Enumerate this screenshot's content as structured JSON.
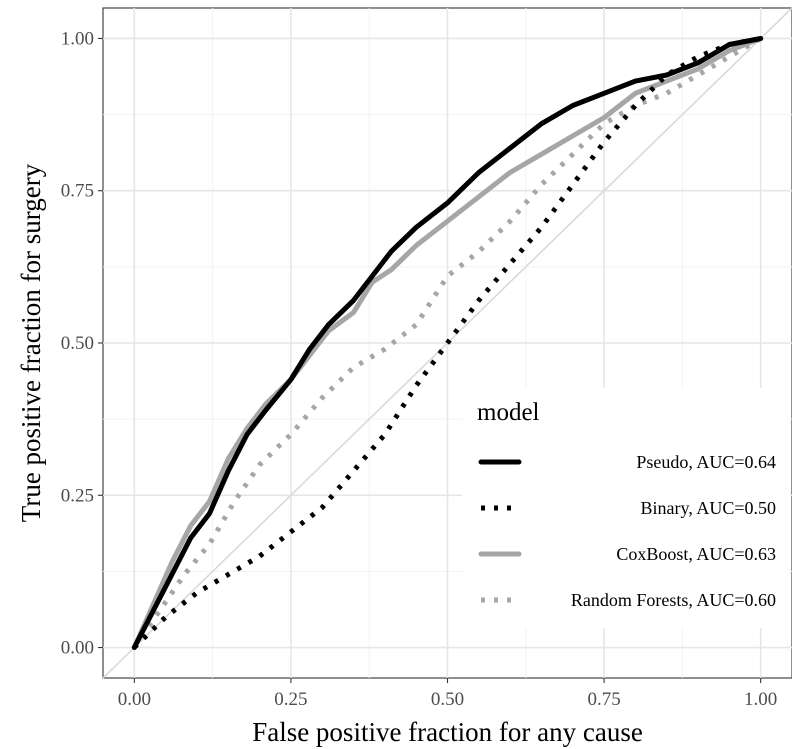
{
  "chart_data": {
    "type": "line",
    "title": "",
    "xlabel": "False positive fraction for any cause",
    "ylabel": "True positive fraction for surgery",
    "xlim": [
      -0.05,
      1.05
    ],
    "ylim": [
      -0.05,
      1.05
    ],
    "x_ticks": [
      "0.00",
      "0.25",
      "0.50",
      "0.75",
      "1.00"
    ],
    "y_ticks": [
      "0.00",
      "0.25",
      "0.50",
      "0.75",
      "1.00"
    ],
    "grid": true,
    "reference_line": {
      "from": [
        0,
        0
      ],
      "to": [
        1,
        1
      ],
      "color": "#d9d9d9"
    },
    "legend": {
      "title": "model",
      "placement": "bottom-right-inside",
      "entries": [
        "Pseudo, AUC=0.64",
        "Binary, AUC=0.50",
        "CoxBoost, AUC=0.63",
        "Random Forests, AUC=0.60"
      ]
    },
    "series": [
      {
        "name": "Pseudo, AUC=0.64",
        "color": "#000000",
        "style": "solid",
        "x": [
          0,
          0.03,
          0.06,
          0.09,
          0.12,
          0.15,
          0.18,
          0.21,
          0.25,
          0.28,
          0.31,
          0.35,
          0.38,
          0.41,
          0.45,
          0.5,
          0.55,
          0.6,
          0.65,
          0.7,
          0.75,
          0.8,
          0.85,
          0.9,
          0.95,
          1.0
        ],
        "y": [
          0,
          0.06,
          0.12,
          0.18,
          0.22,
          0.29,
          0.35,
          0.39,
          0.44,
          0.49,
          0.53,
          0.57,
          0.61,
          0.65,
          0.69,
          0.73,
          0.78,
          0.82,
          0.86,
          0.89,
          0.91,
          0.93,
          0.94,
          0.96,
          0.99,
          1.0
        ]
      },
      {
        "name": "Binary, AUC=0.50",
        "color": "#000000",
        "style": "dotted",
        "x": [
          0,
          0.05,
          0.1,
          0.15,
          0.2,
          0.25,
          0.3,
          0.35,
          0.4,
          0.45,
          0.5,
          0.55,
          0.6,
          0.65,
          0.7,
          0.75,
          0.8,
          0.85,
          0.9,
          0.95,
          1.0
        ],
        "y": [
          0,
          0.05,
          0.09,
          0.12,
          0.15,
          0.19,
          0.23,
          0.29,
          0.35,
          0.43,
          0.5,
          0.57,
          0.63,
          0.69,
          0.76,
          0.83,
          0.89,
          0.94,
          0.97,
          0.99,
          1.0
        ]
      },
      {
        "name": "CoxBoost, AUC=0.63",
        "color": "#a6a6a6",
        "style": "solid",
        "x": [
          0,
          0.03,
          0.06,
          0.09,
          0.12,
          0.15,
          0.18,
          0.21,
          0.25,
          0.28,
          0.31,
          0.35,
          0.38,
          0.41,
          0.45,
          0.5,
          0.55,
          0.6,
          0.65,
          0.7,
          0.75,
          0.8,
          0.85,
          0.9,
          0.95,
          1.0
        ],
        "y": [
          0,
          0.07,
          0.14,
          0.2,
          0.24,
          0.31,
          0.36,
          0.4,
          0.44,
          0.48,
          0.52,
          0.55,
          0.6,
          0.62,
          0.66,
          0.7,
          0.74,
          0.78,
          0.81,
          0.84,
          0.87,
          0.91,
          0.93,
          0.95,
          0.98,
          1.0
        ]
      },
      {
        "name": "Random Forests, AUC=0.60",
        "color": "#a6a6a6",
        "style": "dotted",
        "x": [
          0,
          0.04,
          0.08,
          0.12,
          0.16,
          0.2,
          0.25,
          0.3,
          0.35,
          0.4,
          0.45,
          0.5,
          0.55,
          0.6,
          0.65,
          0.7,
          0.75,
          0.8,
          0.85,
          0.9,
          0.95,
          1.0
        ],
        "y": [
          0,
          0.06,
          0.12,
          0.17,
          0.24,
          0.3,
          0.35,
          0.41,
          0.46,
          0.49,
          0.53,
          0.61,
          0.65,
          0.7,
          0.76,
          0.81,
          0.86,
          0.89,
          0.91,
          0.94,
          0.97,
          1.0
        ]
      }
    ]
  }
}
